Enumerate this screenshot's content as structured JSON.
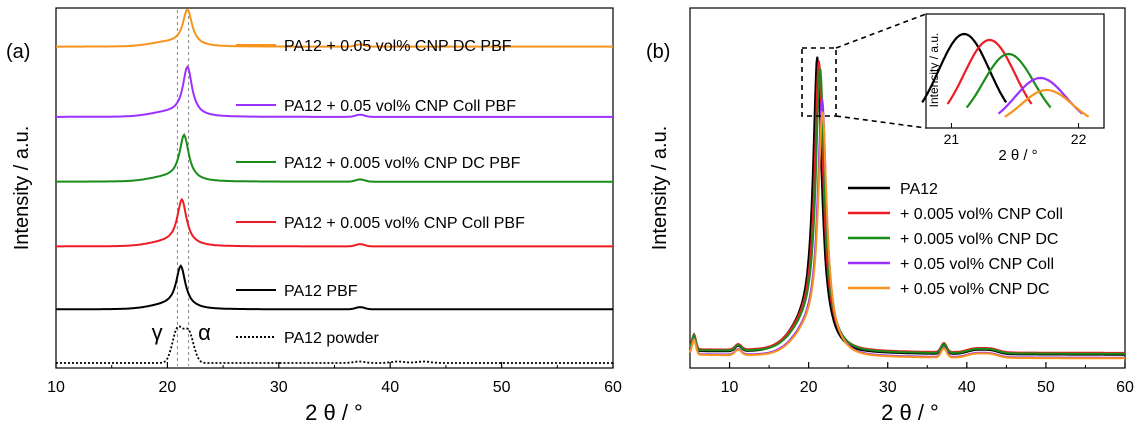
{
  "chart_data": [
    {
      "type": "line",
      "panel_label": "(a)",
      "xlabel": "2 θ / °",
      "ylabel": "Intensity / a.u.",
      "xlim": [
        10,
        60
      ],
      "xticks": [
        10,
        20,
        30,
        40,
        50,
        60
      ],
      "yticks": false,
      "grid": false,
      "legend": "inline labels, stacked (offset traces)",
      "reference_lines": [
        20.9,
        21.9
      ],
      "annotations": [
        {
          "text": "γ",
          "x": 19.3
        },
        {
          "text": "α",
          "x": 23.3
        }
      ],
      "series": [
        {
          "name": "PA12 + 0.05 vol% CNP DC PBF",
          "color": "#f7941d",
          "style": "solid",
          "peak_x": 21.8,
          "baseline": 0.855,
          "peak_height": 0.095
        },
        {
          "name": "PA12 + 0.05 vol% CNP Coll PBF",
          "color": "#9b30ff",
          "style": "solid",
          "peak_x": 21.8,
          "baseline": 0.665,
          "peak_height": 0.13
        },
        {
          "name": "PA12 + 0.005 vol% CNP DC PBF",
          "color": "#1a8c1a",
          "style": "solid",
          "peak_x": 21.5,
          "baseline": 0.49,
          "peak_height": 0.12
        },
        {
          "name": "PA12 + 0.005 vol% CNP Coll PBF",
          "color": "#ee1c25",
          "style": "solid",
          "peak_x": 21.3,
          "baseline": 0.315,
          "peak_height": 0.12
        },
        {
          "name": "PA12 PBF",
          "color": "#000000",
          "style": "solid",
          "peak_x": 21.2,
          "baseline": 0.145,
          "peak_height": 0.11
        },
        {
          "name": "PA12 powder",
          "color": "#000000",
          "style": "dotted",
          "peak_x": [
            20.9,
            21.9
          ],
          "baseline": 0.0,
          "peak_height": 0.09
        }
      ]
    },
    {
      "type": "line",
      "panel_label": "(b)",
      "xlabel": "2 θ / °",
      "ylabel": "Intensity / a.u.",
      "xlim": [
        5,
        60
      ],
      "xticks": [
        10,
        20,
        30,
        40,
        50,
        60
      ],
      "yticks": false,
      "grid": false,
      "legend": "center-right",
      "series": [
        {
          "name": "PA12",
          "color": "#000000",
          "peak_x": 21.1,
          "peak_height": 0.92
        },
        {
          "name": "+ 0.005 vol% CNP Coll",
          "color": "#ee1c25",
          "peak_x": 21.3,
          "peak_height": 0.9
        },
        {
          "name": "+ 0.005 vol% CNP DC",
          "color": "#1a8c1a",
          "peak_x": 21.45,
          "peak_height": 0.88
        },
        {
          "name": "+ 0.05 vol% CNP Coll",
          "color": "#9b30ff",
          "peak_x": 21.7,
          "peak_height": 0.79
        },
        {
          "name": "+ 0.05 vol% CNP DC",
          "color": "#f7941d",
          "peak_x": 21.75,
          "peak_height": 0.75
        }
      ],
      "inset": {
        "xlim": [
          20.8,
          22.2
        ],
        "xticks": [
          21,
          22
        ],
        "xlabel": "2 θ / °",
        "ylabel": "Intensity / a.u."
      }
    }
  ]
}
